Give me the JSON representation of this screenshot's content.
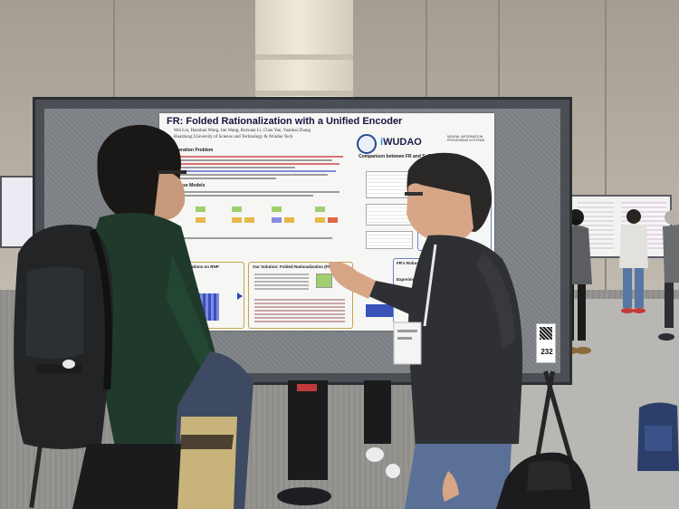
{
  "poster": {
    "title": "FR: Folded Rationalization with a Unified Encoder",
    "authors": "Wei Liu, Haozhao Wang, Jun Wang, Ruixuan Li, Chao Yue, Yuankai Zhang",
    "affiliation": "Huazhong University of Science and Technology & iWudao Tech",
    "logo_text_i": "i",
    "logo_text": "WUDAO",
    "conference_logo_text": "NEURAL INFORMATION PROCESSING SYSTEMS",
    "section_degeneration": "Degeneration Problem",
    "section_two_phase": "Two-phase Models",
    "section_observations": "Our observations on RNP",
    "section_solution": "Our Solution: Folded Rationalization (FR)",
    "section_comparison": "Comparison between FR and SoTA",
    "section_experiments": "Experiments with our extended",
    "section_references": "FR's Robustness against Degeneration",
    "section_skewed": "Experiments with skewed predictors"
  },
  "booth_number": "232",
  "colors": {
    "poster_title": "#15163f",
    "accent_blue": "#3852b8",
    "board_frame": "#4b4f55"
  }
}
